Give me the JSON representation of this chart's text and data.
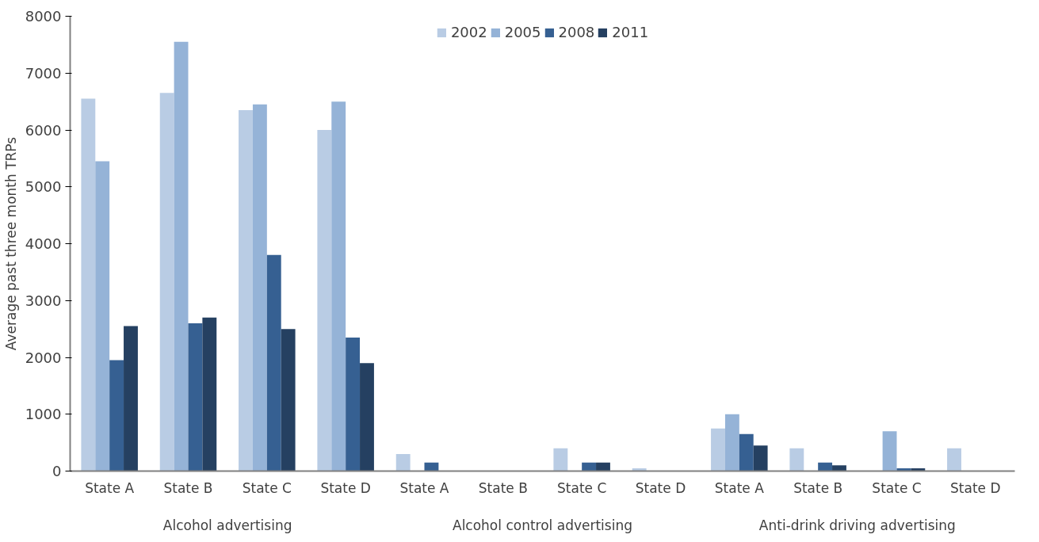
{
  "chart_data": {
    "type": "bar",
    "ylabel": "Average past three month TRPs",
    "categories": [
      "State A",
      "State B",
      "State C",
      "State D",
      "State A",
      "State B",
      "State C",
      "State D",
      "State A",
      "State B",
      "State C",
      "State D"
    ],
    "annotations": [
      "Alcohol advertising",
      "Alcohol control advertising",
      "Anti-drink driving advertising"
    ],
    "series": [
      {
        "name": "2002",
        "color": "#b9cce4",
        "values": [
          6550,
          6650,
          6350,
          6000,
          300,
          0,
          400,
          50,
          750,
          400,
          0,
          400
        ]
      },
      {
        "name": "2005",
        "color": "#95b3d7",
        "values": [
          5450,
          7550,
          6450,
          6500,
          0,
          0,
          0,
          0,
          1000,
          0,
          700,
          0
        ]
      },
      {
        "name": "2008",
        "color": "#366092",
        "values": [
          1950,
          2600,
          3800,
          2350,
          150,
          0,
          150,
          0,
          650,
          150,
          50,
          0
        ]
      },
      {
        "name": "2011",
        "color": "#254061",
        "values": [
          2550,
          2700,
          2500,
          1900,
          0,
          0,
          150,
          0,
          450,
          100,
          50,
          0
        ]
      }
    ],
    "ylim": [
      0,
      8000
    ],
    "yticks": [
      0,
      1000,
      2000,
      3000,
      4000,
      5000,
      6000,
      7000,
      8000
    ],
    "grid": false,
    "legend": "top"
  }
}
